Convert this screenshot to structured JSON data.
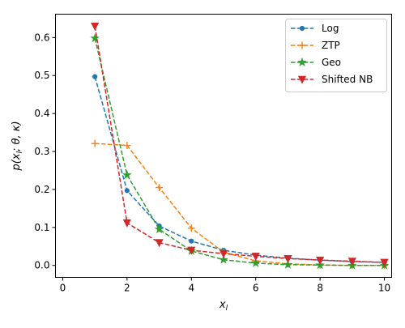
{
  "chart_data": {
    "type": "line",
    "title": "",
    "xlabel": "x_l",
    "ylabel": "p(x_l; θ, κ)",
    "xlim": [
      -0.225,
      10.225
    ],
    "ylim": [
      -0.0315,
      0.6615
    ],
    "xticks": [
      0,
      2,
      4,
      6,
      8,
      10
    ],
    "yticks": [
      0.0,
      0.1,
      0.2,
      0.3,
      0.4,
      0.5,
      0.6
    ],
    "ytick_labels": [
      "0.0",
      "0.1",
      "0.2",
      "0.3",
      "0.4",
      "0.5",
      "0.6"
    ],
    "grid": false,
    "legend": {
      "placement": "top-right",
      "entries": [
        "Log",
        "ZTP",
        "Geo",
        "Shifted NB"
      ]
    },
    "x": [
      1,
      2,
      3,
      4,
      5,
      6,
      7,
      8,
      9,
      10
    ],
    "series": [
      {
        "name": "Log",
        "color": "#1f77b4",
        "marker": "circle",
        "line_style": "dashed",
        "values": [
          0.497,
          0.197,
          0.104,
          0.064,
          0.04,
          0.027,
          0.019,
          0.014,
          0.01,
          0.008
        ]
      },
      {
        "name": "ZTP",
        "color": "#ff7f0e",
        "marker": "plus",
        "line_style": "dashed",
        "values": [
          0.321,
          0.316,
          0.205,
          0.098,
          0.035,
          0.012,
          0.004,
          0.001,
          0.0,
          0.0
        ]
      },
      {
        "name": "Geo",
        "color": "#2ca02c",
        "marker": "star",
        "line_style": "dashed",
        "values": [
          0.598,
          0.238,
          0.095,
          0.038,
          0.015,
          0.006,
          0.002,
          0.001,
          0.0,
          0.0
        ]
      },
      {
        "name": "Shifted NB",
        "color": "#d62728",
        "marker": "triangle-down",
        "line_style": "dashed",
        "values": [
          0.63,
          0.112,
          0.06,
          0.04,
          0.031,
          0.024,
          0.018,
          0.014,
          0.011,
          0.008
        ]
      }
    ]
  }
}
